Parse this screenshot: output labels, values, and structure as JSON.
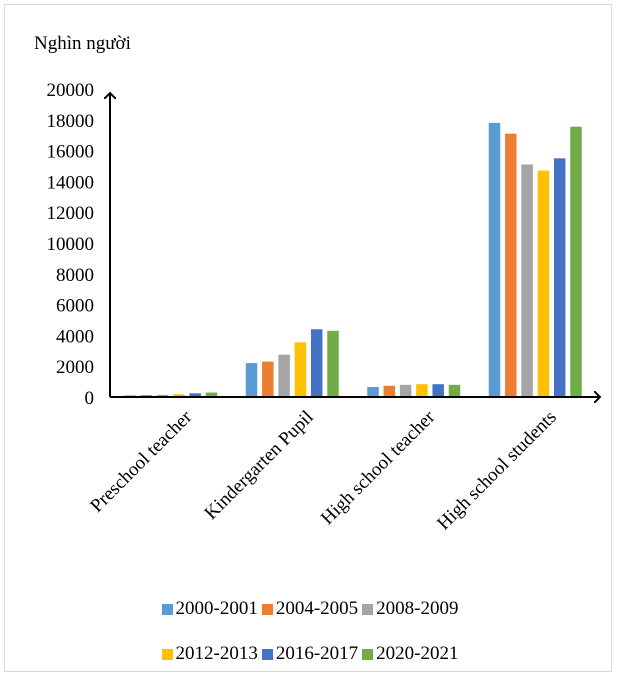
{
  "chart_data": {
    "type": "bar",
    "ylabel": "Nghìn người",
    "ylim": [
      0,
      20000
    ],
    "yticks": [
      0,
      2000,
      4000,
      6000,
      8000,
      10000,
      12000,
      14000,
      16000,
      18000,
      20000
    ],
    "categories": [
      "Preschool teacher",
      "Kindergarten Pupil",
      "High school teacher",
      "High school students"
    ],
    "series": [
      {
        "name": "2000-2001",
        "color": "#5b9bd5",
        "values": [
          100,
          2200,
          650,
          17800
        ]
      },
      {
        "name": "2004-2005",
        "color": "#ed7d31",
        "values": [
          130,
          2300,
          730,
          17100
        ]
      },
      {
        "name": "2008-2009",
        "color": "#a5a5a5",
        "values": [
          140,
          2750,
          790,
          15100
        ]
      },
      {
        "name": "2012-2013",
        "color": "#ffc000",
        "values": [
          180,
          3550,
          830,
          14700
        ]
      },
      {
        "name": "2016-2017",
        "color": "#4472c4",
        "values": [
          240,
          4400,
          830,
          15500
        ]
      },
      {
        "name": "2020-2021",
        "color": "#70ad47",
        "values": [
          290,
          4300,
          790,
          17550
        ]
      }
    ],
    "grid": false,
    "legend_position": "bottom"
  }
}
